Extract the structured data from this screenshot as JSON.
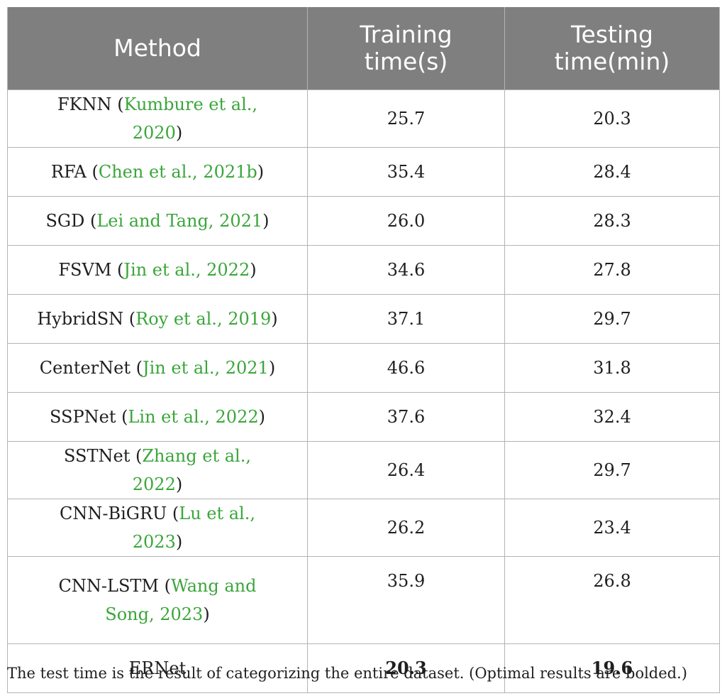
{
  "table": {
    "headers": {
      "method": "Method",
      "training_l1": "Training",
      "training_l2": "time(s)",
      "testing_l1": "Testing",
      "testing_l2": "time(min)"
    },
    "rows": [
      {
        "name": "FKNN",
        "ref": "Kumbure et al., 2020",
        "training": "25.7",
        "testing": "20.3"
      },
      {
        "name": "RFA",
        "ref": "Chen et al., 2021b",
        "training": "35.4",
        "testing": "28.4"
      },
      {
        "name": "SGD",
        "ref": "Lei and Tang, 2021",
        "training": "26.0",
        "testing": "28.3"
      },
      {
        "name": "FSVM",
        "ref": "Jin et al., 2022",
        "training": "34.6",
        "testing": "27.8"
      },
      {
        "name": "HybridSN",
        "ref": "Roy et al., 2019",
        "training": "37.1",
        "testing": "29.7"
      },
      {
        "name": "CenterNet",
        "ref": "Jin et al., 2021",
        "training": "46.6",
        "testing": "31.8"
      },
      {
        "name": "SSPNet",
        "ref": "Lin et al., 2022",
        "training": "37.6",
        "testing": "32.4"
      },
      {
        "name": "SSTNet",
        "ref": "Zhang et al., 2022",
        "training": "26.4",
        "testing": "29.7"
      },
      {
        "name": "CNN-BiGRU",
        "ref": "Lu et al., 2023",
        "training": "26.2",
        "testing": "23.4"
      },
      {
        "name": "CNN-LSTM",
        "ref_l1": "Wang and",
        "ref_l2": "Song, 2023",
        "training": "35.9",
        "testing": "26.8"
      },
      {
        "name": "ERNet",
        "training": "20.3",
        "testing": "19.6"
      }
    ]
  },
  "caption": "The test time is the result of categorizing the entire dataset. (Optimal results are bolded.)",
  "colors": {
    "header_bg": "#7f7f7f",
    "reference_link": "#3aa63a",
    "grid": "#b4b4b4"
  }
}
